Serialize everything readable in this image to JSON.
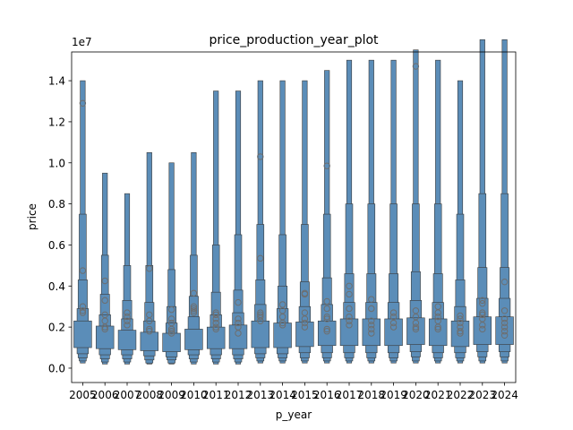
{
  "chart_data": {
    "type": "boxen",
    "title": "price_production_year_plot",
    "xlabel": "p_year",
    "ylabel": "price",
    "y_offset_label": "1e7",
    "y_scale_factor": 10000000,
    "ylim": [
      -700000,
      15400000
    ],
    "yticks": [
      0,
      2000000,
      4000000,
      6000000,
      8000000,
      10000000,
      12000000,
      14000000
    ],
    "ytick_labels": [
      "0.0",
      "0.2",
      "0.4",
      "0.6",
      "0.8",
      "1.0",
      "1.2",
      "1.4"
    ],
    "categories": [
      "2005",
      "2006",
      "2007",
      "2008",
      "2009",
      "2010",
      "2011",
      "2012",
      "2013",
      "2014",
      "2015",
      "2016",
      "2017",
      "2018",
      "2019",
      "2020",
      "2021",
      "2022",
      "2023",
      "2024"
    ],
    "box_color": "#5b8db8",
    "line_color": "#3a3a3a",
    "outlier_color": "#6e6e6e",
    "series": [
      {
        "category": "2005",
        "q1": 1000000,
        "q3": 2300000,
        "levels": [
          [
            700000,
            2900000
          ],
          [
            500000,
            4300000
          ],
          [
            350000,
            7500000
          ],
          [
            250000,
            14000000
          ]
        ],
        "outliers": [
          2700000,
          2800000,
          3000000,
          4750000,
          12900000
        ]
      },
      {
        "category": "2006",
        "q1": 950000,
        "q3": 2050000,
        "levels": [
          [
            650000,
            2600000
          ],
          [
            450000,
            3600000
          ],
          [
            300000,
            5500000
          ],
          [
            200000,
            9500000
          ]
        ],
        "outliers": [
          1900000,
          2000000,
          2300000,
          2600000,
          3300000,
          4250000
        ]
      },
      {
        "category": "2007",
        "q1": 900000,
        "q3": 1850000,
        "levels": [
          [
            650000,
            2400000
          ],
          [
            450000,
            3300000
          ],
          [
            300000,
            5000000
          ],
          [
            200000,
            8500000
          ]
        ],
        "outliers": [
          2100000,
          2300000,
          2500000,
          2700000
        ]
      },
      {
        "category": "2008",
        "q1": 850000,
        "q3": 1750000,
        "levels": [
          [
            600000,
            2300000
          ],
          [
            400000,
            3200000
          ],
          [
            250000,
            5000000
          ],
          [
            200000,
            10500000
          ]
        ],
        "outliers": [
          1800000,
          1900000,
          2300000,
          2600000,
          4850000
        ]
      },
      {
        "category": "2009",
        "q1": 800000,
        "q3": 1700000,
        "levels": [
          [
            550000,
            2200000
          ],
          [
            400000,
            3000000
          ],
          [
            250000,
            4800000
          ],
          [
            200000,
            10000000
          ]
        ],
        "outliers": [
          1700000,
          1800000,
          1900000,
          2200000,
          2400000,
          2850000
        ]
      },
      {
        "category": "2010",
        "q1": 900000,
        "q3": 1900000,
        "levels": [
          [
            650000,
            2500000
          ],
          [
            450000,
            3500000
          ],
          [
            300000,
            5500000
          ],
          [
            200000,
            10500000
          ]
        ],
        "outliers": [
          2700000,
          2800000,
          2900000,
          3000000,
          3650000
        ]
      },
      {
        "category": "2011",
        "q1": 950000,
        "q3": 2000000,
        "levels": [
          [
            650000,
            2600000
          ],
          [
            450000,
            3700000
          ],
          [
            300000,
            6000000
          ],
          [
            200000,
            13500000
          ]
        ],
        "outliers": [
          1900000,
          2000000,
          2200000,
          2400000,
          2600000,
          2700000
        ]
      },
      {
        "category": "2012",
        "q1": 950000,
        "q3": 2100000,
        "levels": [
          [
            650000,
            2700000
          ],
          [
            450000,
            3800000
          ],
          [
            300000,
            6500000
          ],
          [
            200000,
            13500000
          ]
        ],
        "outliers": [
          1700000,
          2000000,
          2200000,
          2400000,
          3200000
        ]
      },
      {
        "category": "2013",
        "q1": 1000000,
        "q3": 2300000,
        "levels": [
          [
            700000,
            3100000
          ],
          [
            500000,
            4300000
          ],
          [
            350000,
            7000000
          ],
          [
            250000,
            14000000
          ]
        ],
        "outliers": [
          2300000,
          2500000,
          2600000,
          2700000,
          5350000,
          10300000
        ]
      },
      {
        "category": "2014",
        "q1": 1000000,
        "q3": 2200000,
        "levels": [
          [
            700000,
            2900000
          ],
          [
            500000,
            4000000
          ],
          [
            350000,
            6500000
          ],
          [
            250000,
            14000000
          ]
        ],
        "outliers": [
          2100000,
          2200000,
          2500000,
          2800000,
          3100000
        ]
      },
      {
        "category": "2015",
        "q1": 1050000,
        "q3": 2250000,
        "levels": [
          [
            750000,
            3000000
          ],
          [
            500000,
            4200000
          ],
          [
            350000,
            7000000
          ],
          [
            250000,
            14000000
          ]
        ],
        "outliers": [
          2000000,
          2200000,
          2400000,
          2700000,
          3600000,
          3650000
        ]
      },
      {
        "category": "2016",
        "q1": 1100000,
        "q3": 2300000,
        "levels": [
          [
            750000,
            3100000
          ],
          [
            500000,
            4400000
          ],
          [
            350000,
            7500000
          ],
          [
            250000,
            14500000
          ]
        ],
        "outliers": [
          1800000,
          1900000,
          2400000,
          2500000,
          2900000,
          3250000,
          9850000
        ]
      },
      {
        "category": "2017",
        "q1": 1100000,
        "q3": 2400000,
        "levels": [
          [
            750000,
            3200000
          ],
          [
            500000,
            4600000
          ],
          [
            350000,
            8000000
          ],
          [
            250000,
            15000000
          ]
        ],
        "outliers": [
          2100000,
          2300000,
          2500000,
          2900000,
          3600000,
          4000000
        ]
      },
      {
        "category": "2018",
        "q1": 1100000,
        "q3": 2400000,
        "levels": [
          [
            750000,
            3200000
          ],
          [
            500000,
            4600000
          ],
          [
            350000,
            8000000
          ],
          [
            250000,
            15000000
          ]
        ],
        "outliers": [
          1700000,
          1900000,
          2100000,
          2300000,
          2900000,
          3350000
        ]
      },
      {
        "category": "2019",
        "q1": 1100000,
        "q3": 2400000,
        "levels": [
          [
            750000,
            3200000
          ],
          [
            500000,
            4600000
          ],
          [
            350000,
            8000000
          ],
          [
            250000,
            15000000
          ]
        ],
        "outliers": [
          2000000,
          2200000,
          2500000,
          2700000
        ]
      },
      {
        "category": "2020",
        "q1": 1150000,
        "q3": 2450000,
        "levels": [
          [
            800000,
            3300000
          ],
          [
            550000,
            4700000
          ],
          [
            350000,
            8000000
          ],
          [
            250000,
            15500000
          ]
        ],
        "outliers": [
          1900000,
          2000000,
          2200000,
          2500000,
          2800000,
          14700000
        ]
      },
      {
        "category": "2021",
        "q1": 1100000,
        "q3": 2400000,
        "levels": [
          [
            750000,
            3200000
          ],
          [
            500000,
            4600000
          ],
          [
            350000,
            8000000
          ],
          [
            250000,
            15000000
          ]
        ],
        "outliers": [
          1900000,
          2000000,
          2300000,
          2500000,
          2700000,
          3000000
        ]
      },
      {
        "category": "2022",
        "q1": 1050000,
        "q3": 2300000,
        "levels": [
          [
            750000,
            3000000
          ],
          [
            500000,
            4300000
          ],
          [
            350000,
            7500000
          ],
          [
            250000,
            14000000
          ]
        ],
        "outliers": [
          1700000,
          1800000,
          2000000,
          2200000,
          2400000,
          2550000
        ]
      },
      {
        "category": "2023",
        "q1": 1150000,
        "q3": 2500000,
        "levels": [
          [
            800000,
            3400000
          ],
          [
            550000,
            4900000
          ],
          [
            350000,
            8500000
          ],
          [
            250000,
            16000000
          ]
        ],
        "outliers": [
          1900000,
          2100000,
          2400000,
          2600000,
          2700000,
          3150000,
          3300000
        ]
      },
      {
        "category": "2024",
        "q1": 1150000,
        "q3": 2500000,
        "levels": [
          [
            800000,
            3400000
          ],
          [
            550000,
            4900000
          ],
          [
            350000,
            8500000
          ],
          [
            250000,
            16000000
          ]
        ],
        "outliers": [
          1600000,
          1800000,
          2000000,
          2200000,
          2400000,
          2800000,
          4200000
        ]
      }
    ]
  }
}
